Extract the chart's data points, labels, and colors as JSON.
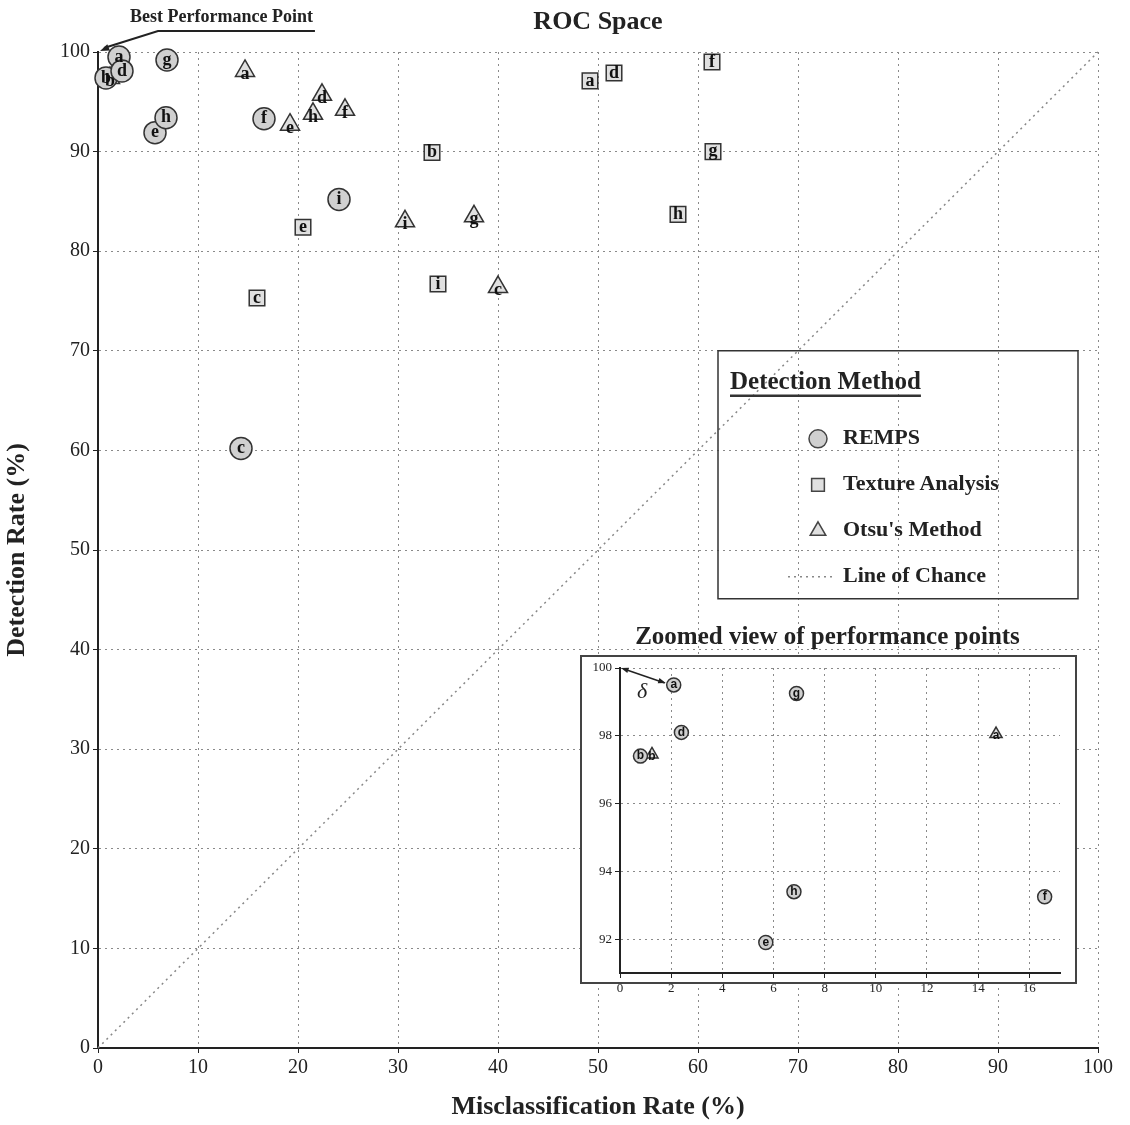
{
  "chart_data": [
    {
      "type": "scatter",
      "title": "ROC Space",
      "xlabel": "Misclassification Rate (%)",
      "ylabel": "Detection Rate (%)",
      "legend_title": "Detection Method",
      "legend": "right",
      "grid": true,
      "xlim": [
        0,
        100
      ],
      "xticks": [
        0,
        10,
        20,
        30,
        40,
        50,
        60,
        70,
        80,
        90,
        100
      ],
      "ylim": [
        0,
        100
      ],
      "yticks": [
        0,
        10,
        20,
        30,
        40,
        50,
        60,
        70,
        80,
        90,
        100
      ],
      "annotations": [
        "Best Performance Point"
      ],
      "series": [
        {
          "name": "REMPS",
          "marker": "circle",
          "color": "#d0d0d0",
          "x": [
            2.1,
            0.8,
            14.3,
            2.4,
            5.7,
            16.6,
            6.9,
            6.8,
            24.1
          ],
          "values": [
            99.5,
            97.4,
            60.2,
            98.1,
            91.9,
            93.3,
            99.2,
            93.4,
            85.2
          ],
          "value_labels": [
            "a",
            "b",
            "c",
            "d",
            "e",
            "f",
            "g",
            "h",
            "i"
          ]
        },
        {
          "name": "Texture Analysis",
          "marker": "square",
          "color": "#e0e0e0",
          "x": [
            49.2,
            33.4,
            15.9,
            51.6,
            20.5,
            61.4,
            61.5,
            58.0,
            34.0
          ],
          "values": [
            97.1,
            89.9,
            75.3,
            97.9,
            82.4,
            99.0,
            90.0,
            83.7,
            76.7
          ],
          "value_labels": [
            "a",
            "b",
            "c",
            "d",
            "e",
            "f",
            "g",
            "h",
            "i"
          ]
        },
        {
          "name": "Otsu's Method",
          "marker": "triangle",
          "color": "#e0e0e0",
          "x": [
            14.7,
            1.2,
            40.0,
            22.4,
            19.2,
            24.7,
            37.6,
            21.5,
            30.7
          ],
          "values": [
            98.1,
            97.4,
            76.4,
            95.7,
            92.7,
            94.2,
            83.5,
            93.8,
            83.0
          ],
          "value_labels": [
            "a",
            "b",
            "c",
            "d",
            "e",
            "f",
            "g",
            "h",
            "i"
          ]
        },
        {
          "name": "Line of Chance",
          "type": "line",
          "line_style": "dotted",
          "marker": "none",
          "color": "#888888",
          "x": [
            0,
            100
          ],
          "values": [
            0,
            100
          ]
        }
      ]
    },
    {
      "type": "scatter",
      "title": "Zoomed view of performance points",
      "grid": true,
      "xlim": [
        0,
        17.2
      ],
      "xticks": [
        0,
        2,
        4,
        6,
        8,
        10,
        12,
        14,
        16
      ],
      "ylim": [
        91,
        100
      ],
      "yticks": [
        92,
        94,
        96,
        98,
        100
      ],
      "annotations": [
        "δ"
      ],
      "series": [
        {
          "marker": "circle",
          "color": "#d0d0d0",
          "x": [
            2.1,
            0.8,
            2.4,
            5.7,
            16.6,
            6.9,
            6.8
          ],
          "values": [
            99.5,
            97.4,
            98.1,
            91.9,
            93.25,
            99.25,
            93.4
          ],
          "value_labels": [
            "a",
            "b",
            "d",
            "e",
            "f",
            "g",
            "h"
          ]
        },
        {
          "marker": "triangle",
          "color": "#e0e0e0",
          "x": [
            14.7,
            1.25
          ],
          "values": [
            98.05,
            97.45
          ],
          "value_labels": [
            "a",
            "b"
          ]
        }
      ]
    }
  ]
}
